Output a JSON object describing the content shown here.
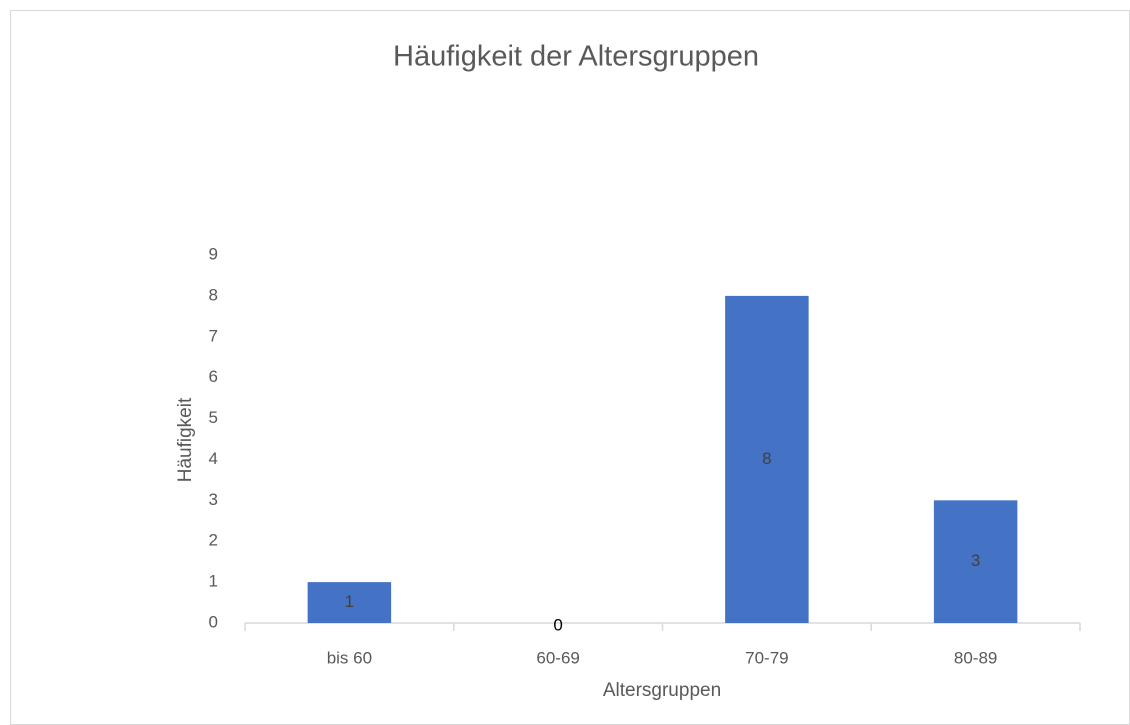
{
  "chart_data": {
    "type": "bar",
    "title": "Häufigkeit der Altersgruppen",
    "x_label": "Altersgruppen",
    "y_label": "Häufigkeit",
    "categories": [
      "bis 60",
      "60-69",
      "70-79",
      "80-89"
    ],
    "values": [
      1,
      0,
      8,
      3
    ],
    "color": "#4472c4",
    "ylim": [
      0,
      9
    ],
    "yticks": [
      0,
      1,
      2,
      3,
      4,
      5,
      6,
      7,
      8,
      9
    ],
    "grid": false
  }
}
